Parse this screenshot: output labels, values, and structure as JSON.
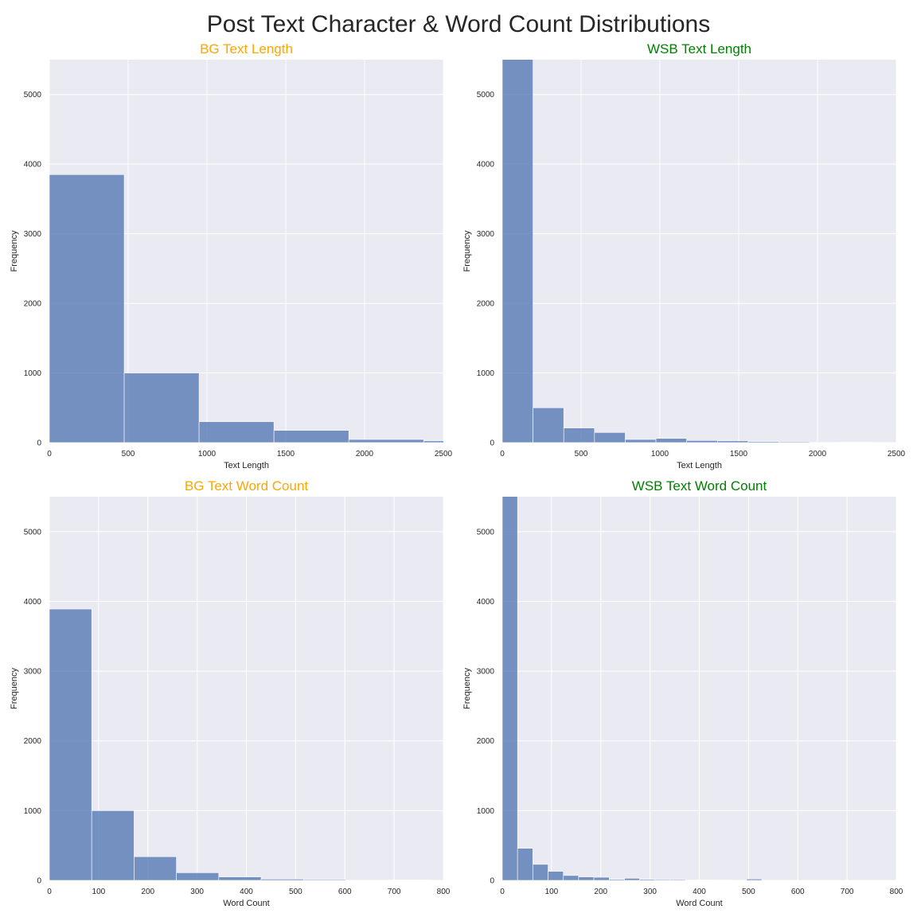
{
  "suptitle": "Post Text Character & Word Count Distributions",
  "colors": {
    "bar": "#4C72B0",
    "plot_bg": "#EAEAF2",
    "grid": "#FFFFFF",
    "bg_title": "#FFA500",
    "wsb_title": "#008000"
  },
  "chart_data": [
    {
      "type": "bar",
      "title": "BG Text Length",
      "title_color": "#FFA500",
      "xlabel": "Text Length",
      "ylabel": "Frequency",
      "xlim": [
        0,
        2500
      ],
      "ylim": [
        0,
        5500
      ],
      "xticks": [
        0,
        500,
        1000,
        1500,
        2000,
        2500
      ],
      "yticks": [
        0,
        1000,
        2000,
        3000,
        4000,
        5000
      ],
      "bin_edges": [
        0,
        475,
        950,
        1425,
        1900,
        2375,
        2850
      ],
      "values": [
        3850,
        1000,
        300,
        175,
        45,
        25
      ]
    },
    {
      "type": "bar",
      "title": "WSB Text Length",
      "title_color": "#008000",
      "xlabel": "Text Length",
      "ylabel": "Frequency",
      "xlim": [
        0,
        2500
      ],
      "ylim": [
        0,
        5500
      ],
      "xticks": [
        0,
        500,
        1000,
        1500,
        2000,
        2500
      ],
      "yticks": [
        0,
        1000,
        2000,
        3000,
        4000,
        5000
      ],
      "bin_edges": [
        0,
        195,
        390,
        585,
        780,
        975,
        1170,
        1365,
        1560,
        1755,
        1950,
        2145,
        2340
      ],
      "values": [
        5600,
        500,
        210,
        145,
        45,
        60,
        30,
        25,
        15,
        12,
        8,
        5
      ]
    },
    {
      "type": "bar",
      "title": "BG Text Word Count",
      "title_color": "#FFA500",
      "xlabel": "Word Count",
      "ylabel": "Frequency",
      "xlim": [
        0,
        800
      ],
      "ylim": [
        0,
        5500
      ],
      "xticks": [
        0,
        100,
        200,
        300,
        400,
        500,
        600,
        700,
        800
      ],
      "yticks": [
        0,
        1000,
        2000,
        3000,
        4000,
        5000
      ],
      "bin_edges": [
        0,
        86,
        172,
        258,
        344,
        430,
        516,
        602,
        688,
        774
      ],
      "values": [
        3890,
        1000,
        340,
        110,
        50,
        18,
        12,
        8,
        6
      ]
    },
    {
      "type": "bar",
      "title": "WSB Text Word Count",
      "title_color": "#008000",
      "xlabel": "Word Count",
      "ylabel": "Frequency",
      "xlim": [
        0,
        800
      ],
      "ylim": [
        0,
        5500
      ],
      "xticks": [
        0,
        100,
        200,
        300,
        400,
        500,
        600,
        700,
        800
      ],
      "yticks": [
        0,
        1000,
        2000,
        3000,
        4000,
        5000
      ],
      "bin_edges": [
        0,
        31,
        62,
        93,
        124,
        155,
        186,
        217,
        248,
        279,
        310,
        341,
        372,
        403,
        434,
        465,
        496,
        527,
        558,
        589,
        620,
        651,
        682,
        713,
        744,
        775,
        806
      ],
      "values": [
        5600,
        460,
        230,
        130,
        70,
        50,
        45,
        15,
        30,
        15,
        12,
        12,
        6,
        5,
        4,
        3,
        20,
        3,
        2,
        2,
        2,
        2,
        2,
        2,
        2,
        2
      ]
    }
  ]
}
